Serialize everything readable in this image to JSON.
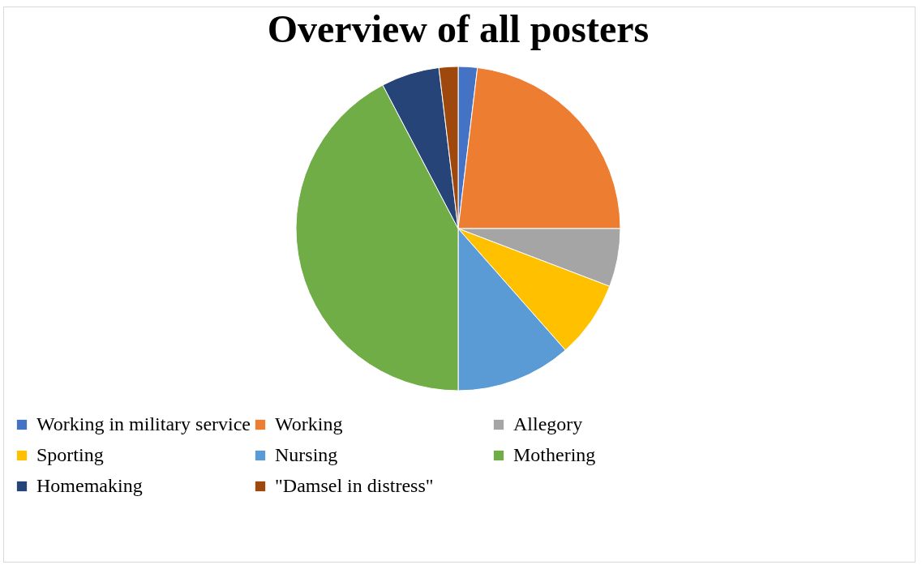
{
  "chart_data": {
    "type": "pie",
    "title": "Overview of all posters",
    "categories": [
      "Working in military service",
      "Working",
      "Allegory",
      "Sporting",
      "Nursing",
      "Mothering",
      "Homemaking",
      "\"Damsel in distress\""
    ],
    "values": [
      1.9,
      23.1,
      5.8,
      7.7,
      11.5,
      42.3,
      5.8,
      1.9
    ],
    "colors": [
      "#4472c4",
      "#ed7d31",
      "#a5a5a5",
      "#ffc000",
      "#5b9bd5",
      "#70ad47",
      "#264478",
      "#9e480e"
    ],
    "legend": "bottom"
  }
}
